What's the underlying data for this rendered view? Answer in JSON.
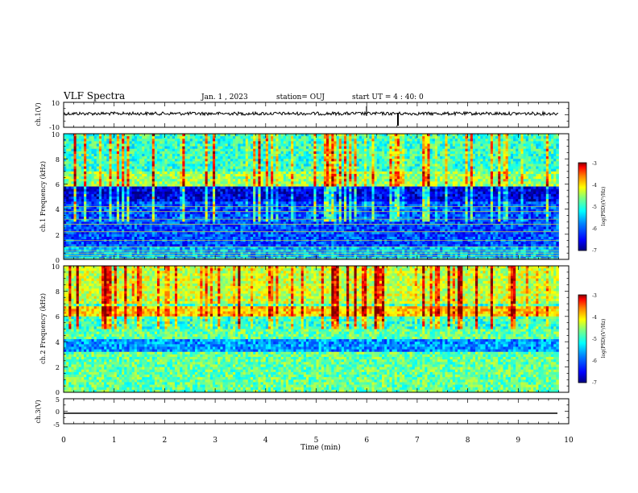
{
  "header": {
    "title": "VLF Spectra",
    "date": "Jan. 1 , 2023",
    "station": "station= OUJ",
    "start": "start UT = 4 : 40: 0"
  },
  "chart_data": [
    {
      "type": "line",
      "panel": "ch1-waveform",
      "ylabel": "ch.1(V)",
      "ylim": [
        -10,
        10
      ],
      "yticks": [
        10,
        -10
      ],
      "xlim": [
        0,
        10
      ],
      "baseline": 0,
      "spikes": [
        {
          "x": 6.0,
          "y": 3.5
        },
        {
          "x": 6.65,
          "y": -4.5
        }
      ]
    },
    {
      "type": "heatmap",
      "panel": "ch1-spectrogram",
      "ylabel": "ch.1 Frequency (kHz)",
      "ylim": [
        0,
        10
      ],
      "yticks": [
        0,
        2,
        4,
        6,
        8,
        10
      ],
      "xlim": [
        0,
        9.8
      ],
      "colorbar": {
        "label": "log(PSD)(V²/Hz)",
        "ticks": [
          -3,
          -4,
          -5,
          -6,
          -7
        ],
        "range": [
          -7,
          -3
        ]
      },
      "noise_band_khz": [
        5.8,
        7.0
      ],
      "background": "low (-6.5 to -7)",
      "hum_lines_khz": [
        0.1,
        0.3,
        0.5,
        0.7,
        1.0,
        1.5,
        2.2,
        2.8,
        3.2,
        3.8,
        4.2
      ]
    },
    {
      "type": "heatmap",
      "panel": "ch2-spectrogram",
      "ylabel": "ch.2 Frequency (kHz)",
      "ylim": [
        0,
        10
      ],
      "yticks": [
        0,
        2,
        4,
        6,
        8,
        10
      ],
      "xlim": [
        0,
        9.8
      ],
      "colorbar": {
        "label": "log(PSD)(V²/Hz)",
        "ticks": [
          -3,
          -4,
          -5,
          -6,
          -7
        ],
        "range": [
          -7,
          -3
        ]
      },
      "noise_band_khz": [
        6.0,
        6.8
      ],
      "background": "moderate (-5 to -5.5)"
    },
    {
      "type": "line",
      "panel": "ch3-waveform",
      "ylabel": "ch.3(V)",
      "ylim": [
        -5,
        5
      ],
      "yticks": [
        5,
        0,
        -5
      ],
      "xlim": [
        0,
        10
      ],
      "baseline": -1.5
    }
  ],
  "xaxis": {
    "label": "Time (min)",
    "ticks": [
      0,
      1,
      2,
      3,
      4,
      5,
      6,
      7,
      8,
      9,
      10
    ]
  },
  "colors": {
    "cmap": [
      "#00007f",
      "#0000ff",
      "#007fff",
      "#00ffff",
      "#7fff7f",
      "#ffff00",
      "#ff7f00",
      "#ff0000",
      "#7f0000"
    ]
  }
}
